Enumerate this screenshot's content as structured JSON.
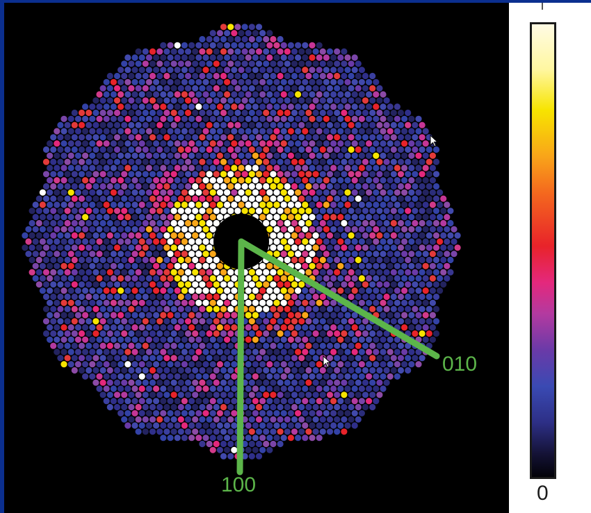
{
  "figure": {
    "colorbar": {
      "min_label": "0",
      "colors": [
        "#fffbe4",
        "#f7e400",
        "#f46a1e",
        "#e8232a",
        "#e4287c",
        "#6a3aa8",
        "#3a4ab3",
        "#020208"
      ]
    },
    "axis_labels": {
      "direction_100": "100",
      "direction_010": "010"
    },
    "colors": {
      "background": "#000000",
      "axis_lines": "#5cb54a",
      "frame": "#0b2f8f"
    },
    "icons": [
      "cursor-arrow-icon"
    ]
  }
}
